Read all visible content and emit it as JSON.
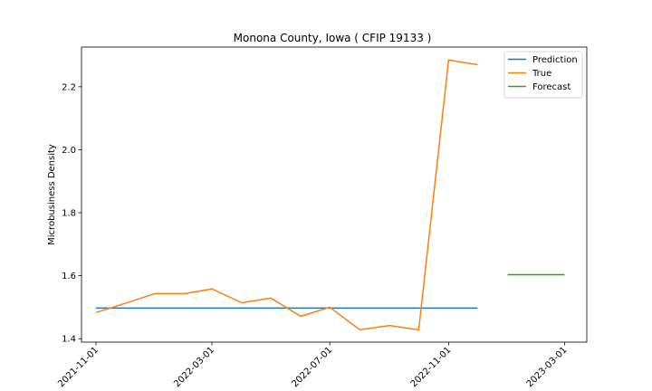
{
  "chart_data": {
    "type": "line",
    "title": "Monona County, Iowa ( CFIP 19133 )",
    "xlabel": "",
    "ylabel": "Microbusiness Density",
    "xlim": [
      "2021-10-17",
      "2023-03-24"
    ],
    "ylim": [
      1.389,
      2.326
    ],
    "x_ticks": [
      "2021-11-01",
      "2022-03-01",
      "2022-07-01",
      "2022-11-01",
      "2023-03-01"
    ],
    "y_ticks": [
      1.4,
      1.6,
      1.8,
      2.0,
      2.2
    ],
    "y_tick_labels": [
      "1.4",
      "1.6",
      "1.8",
      "2.0",
      "2.2"
    ],
    "grid": false,
    "legend_position": "top-right",
    "series": [
      {
        "name": "Prediction",
        "color": "#1f77b4",
        "x": [
          "2021-11-01",
          "2022-12-01"
        ],
        "y": [
          1.497,
          1.497
        ]
      },
      {
        "name": "True",
        "color": "#ff7f0e",
        "x": [
          "2021-11-01",
          "2021-12-01",
          "2022-01-01",
          "2022-02-01",
          "2022-03-01",
          "2022-04-01",
          "2022-05-01",
          "2022-06-01",
          "2022-07-01",
          "2022-08-01",
          "2022-09-01",
          "2022-10-01",
          "2022-11-01",
          "2022-12-01"
        ],
        "y": [
          1.483,
          1.512,
          1.543,
          1.543,
          1.558,
          1.514,
          1.529,
          1.471,
          1.5,
          1.428,
          1.442,
          1.428,
          2.285,
          2.27
        ]
      },
      {
        "name": "Forecast",
        "color": "#2ca02c",
        "x": [
          "2023-01-01",
          "2023-03-01"
        ],
        "y": [
          1.603,
          1.603
        ]
      }
    ]
  }
}
